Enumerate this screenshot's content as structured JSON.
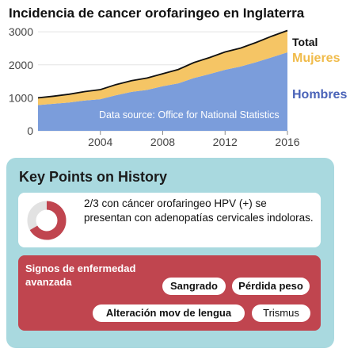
{
  "chart_data": {
    "type": "area",
    "title": "Incidencia de cancer orofaringeo en Inglaterra",
    "x": [
      2000,
      2001,
      2002,
      2003,
      2004,
      2005,
      2006,
      2007,
      2008,
      2009,
      2010,
      2011,
      2012,
      2013,
      2014,
      2015,
      2016
    ],
    "series": [
      {
        "name": "Hombres",
        "values": [
          780,
          820,
          860,
          920,
          960,
          1080,
          1180,
          1240,
          1350,
          1440,
          1600,
          1720,
          1850,
          1950,
          2080,
          2230,
          2380
        ]
      },
      {
        "name": "Mujeres",
        "values": [
          220,
          230,
          250,
          270,
          290,
          320,
          340,
          360,
          380,
          420,
          470,
          500,
          540,
          560,
          600,
          640,
          660
        ]
      }
    ],
    "total_label": "Total",
    "xticks": [
      2004,
      2008,
      2012,
      2016
    ],
    "yticks": [
      0,
      1000,
      2000,
      3000
    ],
    "ylim": [
      0,
      3100
    ],
    "xlim": [
      2000,
      2016
    ],
    "annotation": "Data source: Office for National Statistics",
    "colors": {
      "Hombres": "#7b9ddb",
      "Mujeres": "#f5c565",
      "Total": "#111111",
      "legend_hombres": "#4a63b8",
      "legend_mujeres": "#f0bb4a"
    },
    "grid": true,
    "legend": "right"
  },
  "panel": {
    "title": "Key Points on History",
    "fact_ring_fraction": 0.6667,
    "fact_text": "2/3 con cáncer orofaringeo HPV (+) se presentan con adenopatías cervicales indoloras.",
    "signs_title": "Signos de enfermedad avanzada",
    "signs": {
      "sangrado": "Sangrado",
      "perdida": "Pérdida peso",
      "alteracion": "Alteración mov de lengua",
      "trismus": "Trismus"
    },
    "colors": {
      "panel_bg": "#a9d9df",
      "ring": "#c0454f",
      "ring_track": "#e2e2e2",
      "signs_bg": "#c0454f"
    }
  }
}
